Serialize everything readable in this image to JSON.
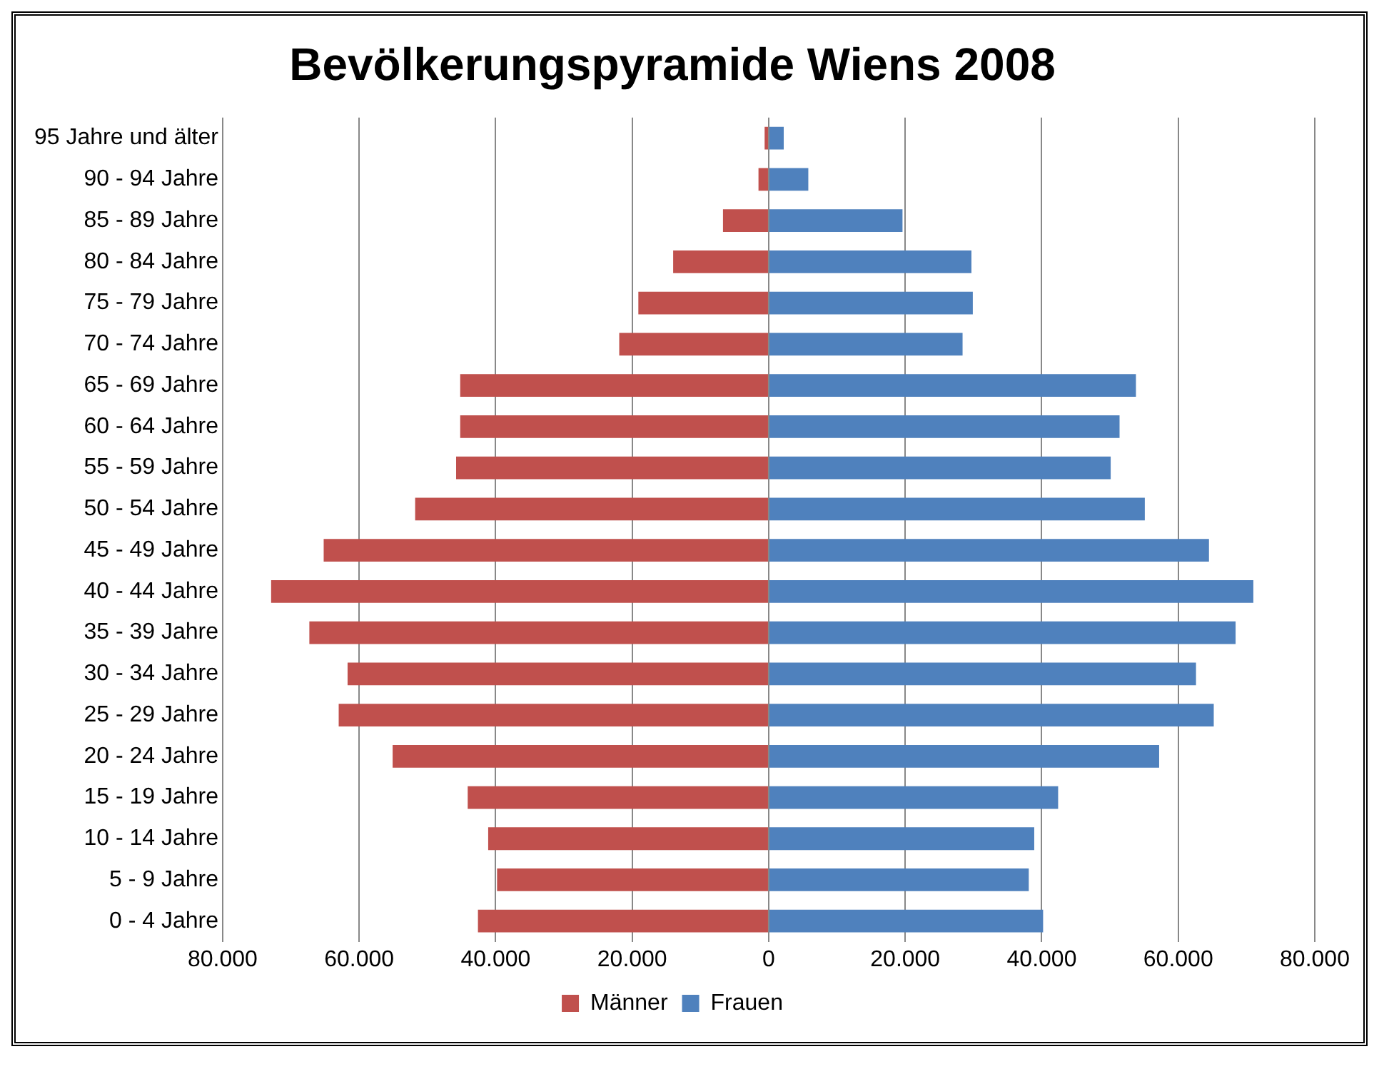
{
  "chart_data": {
    "type": "bar",
    "orientation": "horizontal",
    "stacked": true,
    "title": "Bevölkerungspyramide Wiens 2008",
    "categories": [
      "95 Jahre und älter",
      "90 - 94 Jahre",
      "85 - 89 Jahre",
      "80 - 84 Jahre",
      "75 - 79 Jahre",
      "70 - 74 Jahre",
      "65 - 69 Jahre",
      "60 - 64 Jahre",
      "55 - 59 Jahre",
      "50 - 54 Jahre",
      "45 - 49 Jahre",
      "40 - 44 Jahre",
      "35 - 39 Jahre",
      "30 - 34 Jahre",
      "25 - 29 Jahre",
      "20 - 24 Jahre",
      "15 - 19 Jahre",
      "10 - 14 Jahre",
      "5 - 9 Jahre",
      "0 - 4 Jahre"
    ],
    "series": [
      {
        "name": "Männer",
        "color": "#c0504d",
        "values": [
          -600,
          -1500,
          -6700,
          -14000,
          -19100,
          -21900,
          -45200,
          -45200,
          -45800,
          -51800,
          -65200,
          -72900,
          -67300,
          -61700,
          -63000,
          -55100,
          -44100,
          -41100,
          -39800,
          -42600
        ]
      },
      {
        "name": "Frauen",
        "color": "#4f81bd",
        "values": [
          2200,
          5800,
          19600,
          29700,
          29900,
          28400,
          53800,
          51400,
          50100,
          55100,
          64500,
          71000,
          68400,
          62600,
          65200,
          57200,
          42400,
          38900,
          38100,
          40200
        ]
      }
    ],
    "xlim": [
      -80000,
      80000
    ],
    "xticks": [
      {
        "value": -80000,
        "label": "80.000"
      },
      {
        "value": -60000,
        "label": "60.000"
      },
      {
        "value": -40000,
        "label": "40.000"
      },
      {
        "value": -20000,
        "label": "20.000"
      },
      0,
      {
        "value": 20000,
        "label": "20.000"
      },
      {
        "value": 40000,
        "label": "40.000"
      },
      {
        "value": 60000,
        "label": "60.000"
      },
      {
        "value": 80000,
        "label": "80.000"
      }
    ],
    "grid": "x",
    "legend": "bottom"
  }
}
